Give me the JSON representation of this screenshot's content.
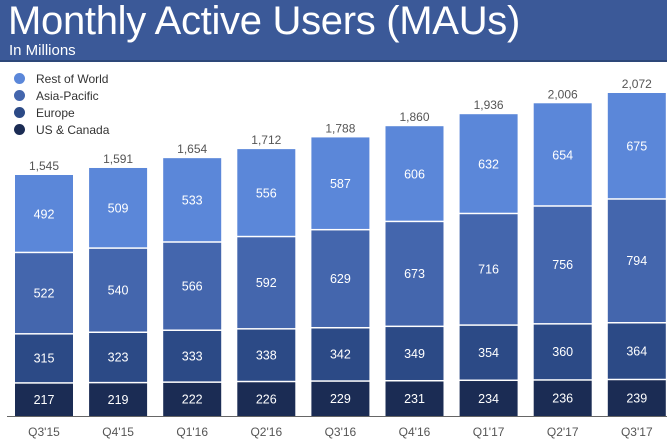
{
  "header": {
    "title": "Monthly Active Users (MAUs)",
    "subtitle": "In Millions"
  },
  "colors": {
    "header_bg": "#3b5998",
    "rest_of_world": "#5b87d9",
    "asia_pacific": "#4466ad",
    "europe": "#2c4a86",
    "us_canada": "#1b2c54",
    "axis": "#555555",
    "label_text": "#555555",
    "segment_text": "#ffffff"
  },
  "chart_data": {
    "type": "bar",
    "stacked": true,
    "title": "Monthly Active Users (MAUs)",
    "subtitle": "In Millions",
    "xlabel": "",
    "ylabel": "",
    "ylim": [
      0,
      2100
    ],
    "grid": false,
    "legend_position": "top-left",
    "categories": [
      "Q3'15",
      "Q4'15",
      "Q1'16",
      "Q2'16",
      "Q3'16",
      "Q4'16",
      "Q1'17",
      "Q2'17",
      "Q3'17"
    ],
    "totals": [
      "1,545",
      "1,591",
      "1,654",
      "1,712",
      "1,788",
      "1,860",
      "1,936",
      "2,006",
      "2,072"
    ],
    "series": [
      {
        "name": "US & Canada",
        "color_key": "us_canada",
        "values": [
          217,
          219,
          222,
          226,
          229,
          231,
          234,
          236,
          239
        ]
      },
      {
        "name": "Europe",
        "color_key": "europe",
        "values": [
          315,
          323,
          333,
          338,
          342,
          349,
          354,
          360,
          364
        ]
      },
      {
        "name": "Asia-Pacific",
        "color_key": "asia_pacific",
        "values": [
          522,
          540,
          566,
          592,
          629,
          673,
          716,
          756,
          794
        ]
      },
      {
        "name": "Rest of World",
        "color_key": "rest_of_world",
        "values": [
          492,
          509,
          533,
          556,
          587,
          606,
          632,
          654,
          675
        ]
      }
    ],
    "legend": [
      "Rest of World",
      "Asia-Pacific",
      "Europe",
      "US & Canada"
    ]
  }
}
